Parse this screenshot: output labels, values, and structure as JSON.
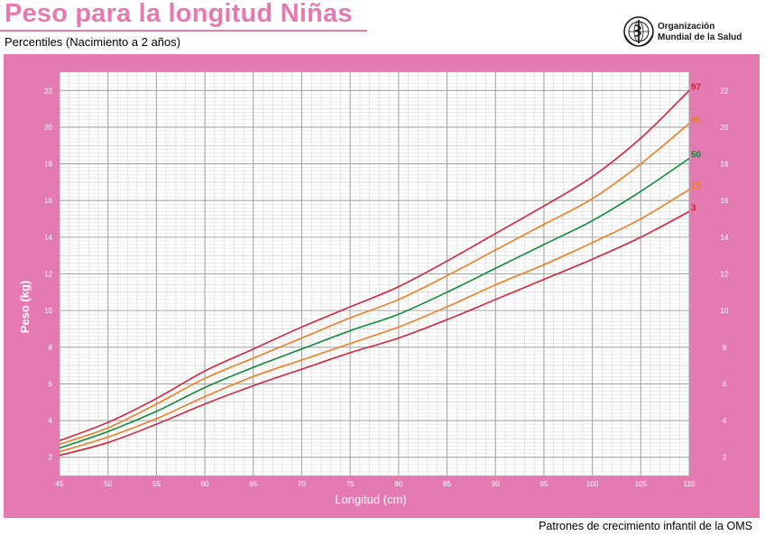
{
  "header": {
    "title": "Peso para la longitud Niñas",
    "subtitle": "Percentiles (Nacimiento a 2 años)",
    "org_line1": "Organización",
    "org_line2": "Mundial de la Salud"
  },
  "footer": {
    "text": "Patrones de crecimiento infantil de la OMS"
  },
  "colors": {
    "brand_pink": "#e57ab3",
    "p3": "#d2233c",
    "p15": "#ec7d22",
    "p50": "#0f8a3b",
    "p85": "#ec7d22",
    "p97": "#d2233c"
  },
  "chart_data": {
    "type": "line",
    "title": "Peso para la longitud Niñas",
    "xlabel": "Longitud (cm)",
    "ylabel": "Peso (kg)",
    "xlim": [
      45,
      110
    ],
    "ylim": [
      1,
      23
    ],
    "x_ticks": [
      45,
      50,
      55,
      60,
      65,
      70,
      75,
      80,
      85,
      90,
      95,
      100,
      105,
      110
    ],
    "y_ticks": [
      2,
      4,
      6,
      8,
      10,
      12,
      14,
      16,
      18,
      20,
      22
    ],
    "grid": true,
    "x": [
      45,
      50,
      55,
      60,
      65,
      70,
      75,
      80,
      85,
      90,
      95,
      100,
      105,
      110
    ],
    "series": [
      {
        "name": "3",
        "color": "#d2233c",
        "values": [
          2.1,
          2.8,
          3.8,
          4.9,
          5.9,
          6.8,
          7.7,
          8.5,
          9.5,
          10.6,
          11.7,
          12.8,
          14.0,
          15.4
        ]
      },
      {
        "name": "15",
        "color": "#ec7d22",
        "values": [
          2.3,
          3.1,
          4.1,
          5.3,
          6.4,
          7.3,
          8.2,
          9.1,
          10.2,
          11.4,
          12.5,
          13.7,
          15.0,
          16.6
        ]
      },
      {
        "name": "50",
        "color": "#0f8a3b",
        "values": [
          2.5,
          3.4,
          4.5,
          5.8,
          6.9,
          7.9,
          8.9,
          9.8,
          11.0,
          12.3,
          13.6,
          14.9,
          16.5,
          18.3
        ]
      },
      {
        "name": "85",
        "color": "#ec7d22",
        "values": [
          2.7,
          3.6,
          4.9,
          6.3,
          7.4,
          8.5,
          9.6,
          10.6,
          11.9,
          13.3,
          14.7,
          16.1,
          18.0,
          20.2
        ]
      },
      {
        "name": "97",
        "color": "#d2233c",
        "values": [
          2.9,
          3.9,
          5.2,
          6.7,
          7.9,
          9.1,
          10.2,
          11.3,
          12.7,
          14.2,
          15.7,
          17.3,
          19.4,
          22.0
        ]
      }
    ]
  }
}
